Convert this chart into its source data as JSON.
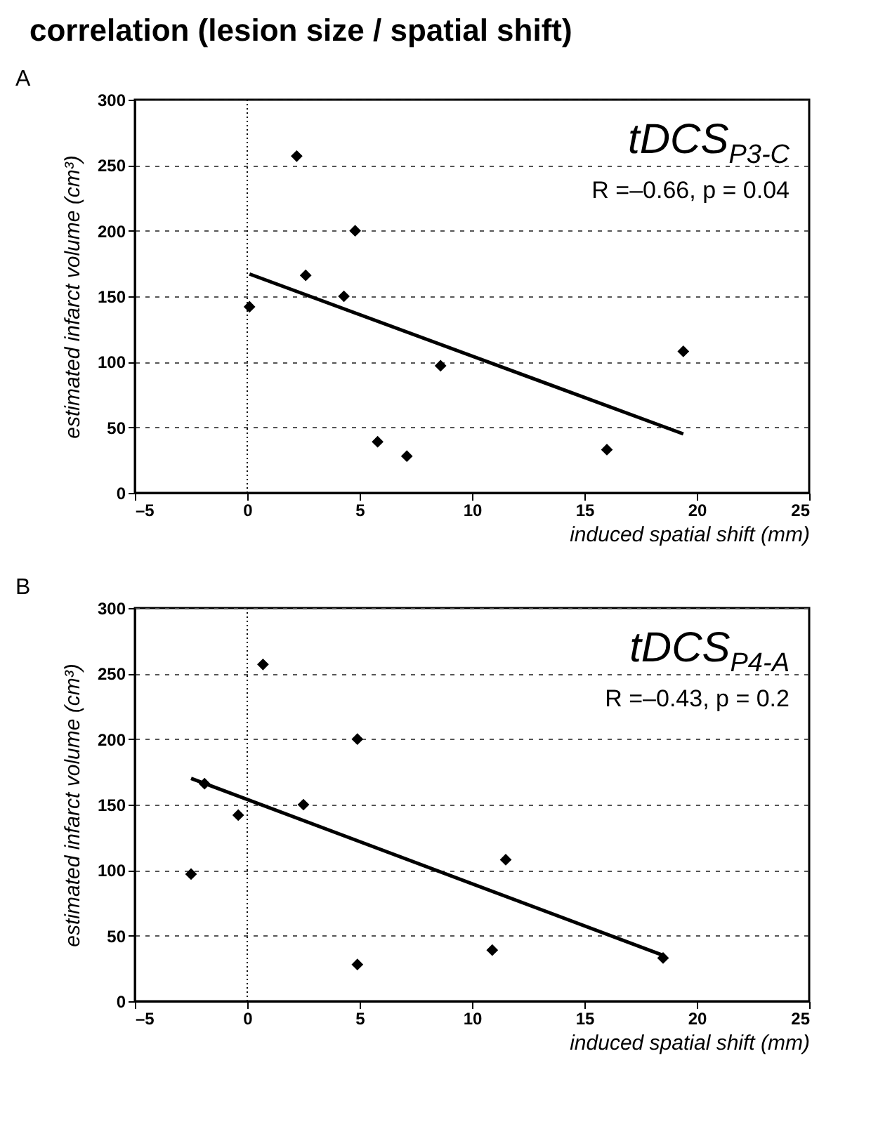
{
  "chart_data": [
    {
      "type": "scatter",
      "title": "correlation (lesion size / spatial shift)",
      "xlabel": "induced spatial shift (mm)",
      "ylabel": "estimated infarct volume (cm³)",
      "series": [
        {
          "color": "#000000",
          "marker": "diamond",
          "x": [
            0.1,
            2.2,
            2.6,
            4.3,
            4.8,
            5.8,
            7.1,
            8.6,
            16,
            19.4
          ],
          "values": [
            142,
            257,
            166,
            150,
            200,
            39,
            28,
            97,
            33,
            108
          ]
        },
        {
          "type": "line",
          "color": "#000000",
          "line_style": "solid",
          "x": [
            0.1,
            19.4
          ],
          "values": [
            167,
            45
          ]
        }
      ],
      "xlim": [
        -5,
        25
      ],
      "xticks": [
        {
          "value": -5,
          "label": "–5"
        },
        0,
        5,
        10,
        15,
        20,
        25
      ],
      "ylim": [
        0,
        300
      ],
      "yticks": [
        0,
        50,
        100,
        150,
        200,
        250,
        300
      ],
      "grid": "y",
      "ref_lines": [
        {
          "axis": "x",
          "value": 0,
          "line_style": "dotted"
        }
      ],
      "annotations": [
        "A",
        "tDCS$_{P3-C}$",
        "R =–0.66, p = 0.04"
      ]
    },
    {
      "type": "scatter",
      "xlabel": "induced spatial shift (mm)",
      "ylabel": "estimated infarct volume (cm³)",
      "series": [
        {
          "color": "#000000",
          "marker": "diamond",
          "x": [
            -2.5,
            -1.9,
            -0.4,
            0.7,
            2.5,
            4.9,
            4.9,
            10.9,
            11.5,
            18.5
          ],
          "values": [
            97,
            166,
            142,
            257,
            150,
            200,
            28,
            39,
            108,
            33
          ]
        },
        {
          "type": "line",
          "color": "#000000",
          "line_style": "solid",
          "x": [
            -2.5,
            18.5
          ],
          "values": [
            170,
            35
          ]
        }
      ],
      "xlim": [
        -5,
        25
      ],
      "xticks": [
        {
          "value": -5,
          "label": "–5"
        },
        0,
        5,
        10,
        15,
        20,
        25
      ],
      "ylim": [
        0,
        300
      ],
      "yticks": [
        0,
        50,
        100,
        150,
        200,
        250,
        300
      ],
      "grid": "y",
      "ref_lines": [
        {
          "axis": "x",
          "value": 0,
          "line_style": "dotted"
        }
      ],
      "annotations": [
        "B",
        "tDCS$_{P4-A}$",
        "R =–0.43, p = 0.2"
      ]
    }
  ]
}
